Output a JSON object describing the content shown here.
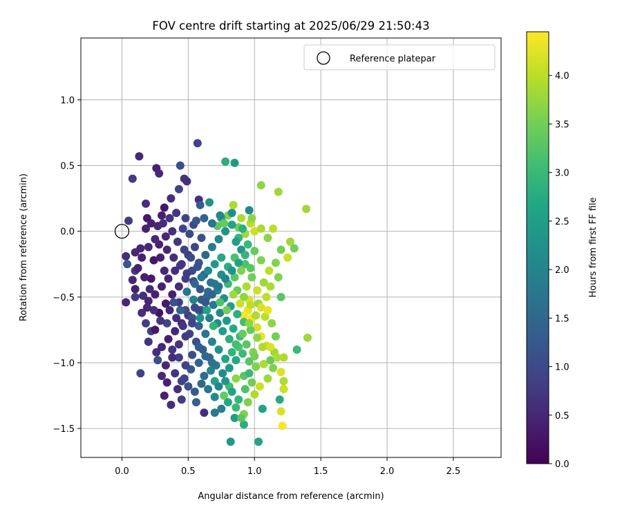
{
  "chart_data": {
    "type": "scatter",
    "title": "FOV centre drift starting at 2025/06/29 21:50:43",
    "xlabel": "Angular distance from reference (arcmin)",
    "ylabel": "Rotation from reference (arcmin)",
    "xlim": [
      -0.31,
      2.86
    ],
    "ylim": [
      -1.72,
      1.47
    ],
    "x_ticks": [
      0.0,
      0.5,
      1.0,
      1.5,
      2.0,
      2.5
    ],
    "x_tick_labels": [
      "0.0",
      "0.5",
      "1.0",
      "1.5",
      "2.0",
      "2.5"
    ],
    "y_ticks": [
      1.0,
      0.5,
      0.0,
      -0.5,
      -1.0,
      -1.5
    ],
    "y_tick_labels": [
      "1.0",
      "0.5",
      "0.0",
      "−0.5",
      "−1.0",
      "−1.5"
    ],
    "grid": true,
    "legend": {
      "placement": "top-right",
      "entries": [
        {
          "label": "Reference platepar",
          "marker": "open-circle"
        }
      ]
    },
    "reference_point": {
      "x": 0.0,
      "y": 0.0
    },
    "colorbar": {
      "label": "Hours from first FF file",
      "colormap": "viridis",
      "range": [
        0.0,
        4.45
      ],
      "ticks": [
        0.0,
        0.5,
        1.0,
        1.5,
        2.0,
        2.5,
        3.0,
        3.5,
        4.0
      ],
      "tick_labels": [
        "0.0",
        "0.5",
        "1.0",
        "1.5",
        "2.0",
        "2.5",
        "3.0",
        "3.5",
        "4.0"
      ]
    },
    "points": [
      [
        0.57,
        0.67,
        0.9
      ],
      [
        0.13,
        0.57,
        0.5
      ],
      [
        0.44,
        0.5,
        1.1
      ],
      [
        0.26,
        0.48,
        0.4
      ],
      [
        0.28,
        0.44,
        0.5
      ],
      [
        0.08,
        0.4,
        0.8
      ],
      [
        0.47,
        0.4,
        0.7
      ],
      [
        0.49,
        0.38,
        0.6
      ],
      [
        0.43,
        0.32,
        0.9
      ],
      [
        0.37,
        0.25,
        0.6
      ],
      [
        0.18,
        0.21,
        0.6
      ],
      [
        0.58,
        0.24,
        0.6
      ],
      [
        0.66,
        0.22,
        2.3
      ],
      [
        0.32,
        0.18,
        0.3
      ],
      [
        0.3,
        0.12,
        0.4
      ],
      [
        0.05,
        0.08,
        0.8
      ],
      [
        0.19,
        0.1,
        0.3
      ],
      [
        0.22,
        0.06,
        0.4
      ],
      [
        0.18,
        0.02,
        0.4
      ],
      [
        0.27,
        0.04,
        0.5
      ],
      [
        0.41,
        0.14,
        0.7
      ],
      [
        0.48,
        0.1,
        0.9
      ],
      [
        0.54,
        0.05,
        1.0
      ],
      [
        0.59,
        0.2,
        1.3
      ],
      [
        0.78,
        0.53,
        2.8
      ],
      [
        0.85,
        0.52,
        2.4
      ],
      [
        1.05,
        0.35,
        3.7
      ],
      [
        1.18,
        0.3,
        3.8
      ],
      [
        1.39,
        0.17,
        3.8
      ],
      [
        0.96,
        0.16,
        2.1
      ],
      [
        0.8,
        0.12,
        3.6
      ],
      [
        0.9,
        0.1,
        3.9
      ],
      [
        0.97,
        0.06,
        4.0
      ],
      [
        0.75,
        0.1,
        2.6
      ],
      [
        0.72,
        0.04,
        3.3
      ],
      [
        0.88,
        0.03,
        3.5
      ],
      [
        0.93,
        -0.02,
        3.8
      ],
      [
        1.0,
        0.0,
        4.1
      ],
      [
        1.05,
        0.02,
        3.9
      ],
      [
        1.1,
        -0.05,
        3.7
      ],
      [
        1.14,
        0.02,
        4.0
      ],
      [
        1.27,
        -0.08,
        3.8
      ],
      [
        1.3,
        -0.13,
        3.5
      ],
      [
        1.25,
        -0.2,
        4.1
      ],
      [
        1.18,
        -0.35,
        3.6
      ],
      [
        1.2,
        -0.5,
        3.3
      ],
      [
        1.4,
        -0.81,
        3.8
      ],
      [
        1.32,
        -0.9,
        3.0
      ],
      [
        1.22,
        -0.96,
        3.9
      ],
      [
        1.2,
        -1.07,
        4.2
      ],
      [
        1.22,
        -1.14,
        3.9
      ],
      [
        1.22,
        -1.2,
        4.1
      ],
      [
        1.19,
        -1.28,
        2.7
      ],
      [
        1.2,
        -1.37,
        4.2
      ],
      [
        1.21,
        -1.48,
        4.4
      ],
      [
        1.06,
        -1.35,
        2.6
      ],
      [
        1.03,
        -1.6,
        2.6
      ],
      [
        0.92,
        -1.47,
        2.8
      ],
      [
        0.85,
        -1.42,
        2.5
      ],
      [
        0.82,
        -1.6,
        2.4
      ],
      [
        0.92,
        -1.39,
        3.6
      ],
      [
        0.75,
        -1.35,
        1.9
      ],
      [
        0.7,
        -1.38,
        1.8
      ],
      [
        0.62,
        -1.38,
        0.6
      ],
      [
        0.56,
        -1.3,
        1.4
      ],
      [
        0.45,
        -1.28,
        0.8
      ],
      [
        0.37,
        -1.32,
        0.6
      ],
      [
        0.32,
        -1.25,
        0.4
      ],
      [
        0.14,
        -1.08,
        0.9
      ],
      [
        0.03,
        -0.54,
        0.5
      ],
      [
        0.03,
        -0.19,
        0.6
      ],
      [
        0.04,
        -0.25,
        1.2
      ],
      [
        0.1,
        -0.16,
        0.5
      ],
      [
        0.14,
        -0.13,
        0.5
      ],
      [
        0.1,
        -0.3,
        0.7
      ],
      [
        0.08,
        -0.37,
        0.5
      ],
      [
        0.12,
        -0.28,
        0.4
      ],
      [
        0.1,
        -0.44,
        0.4
      ],
      [
        0.16,
        -0.49,
        0.6
      ],
      [
        0.1,
        -0.5,
        0.8
      ],
      [
        0.2,
        -0.53,
        0.5
      ],
      [
        0.15,
        -0.62,
        0.6
      ],
      [
        0.18,
        -0.7,
        0.8
      ],
      [
        0.22,
        -0.76,
        0.9
      ],
      [
        0.2,
        -0.84,
        0.7
      ],
      [
        0.26,
        -0.92,
        0.6
      ],
      [
        0.27,
        -0.98,
        1.1
      ],
      [
        0.3,
        -1.1,
        0.5
      ],
      [
        0.34,
        -1.15,
        0.4
      ],
      [
        0.42,
        -1.2,
        0.6
      ],
      [
        0.47,
        -1.12,
        0.9
      ],
      [
        0.52,
        -1.05,
        1.2
      ],
      [
        0.58,
        -1.0,
        1.4
      ],
      [
        0.62,
        -1.1,
        1.6
      ],
      [
        0.67,
        -1.06,
        2.0
      ],
      [
        0.7,
        -1.14,
        2.6
      ],
      [
        0.77,
        -1.25,
        3.4
      ],
      [
        0.81,
        -1.18,
        3.1
      ],
      [
        0.86,
        -1.12,
        3.7
      ],
      [
        0.92,
        -1.1,
        3.3
      ],
      [
        0.96,
        -1.08,
        3.0
      ],
      [
        1.01,
        -1.03,
        3.6
      ],
      [
        1.07,
        -1.01,
        3.9
      ],
      [
        1.12,
        -0.98,
        3.4
      ],
      [
        1.15,
        -0.92,
        3.8
      ],
      [
        1.09,
        -0.87,
        4.1
      ],
      [
        1.05,
        -0.8,
        4.3
      ],
      [
        1.02,
        -0.73,
        4.2
      ],
      [
        0.98,
        -0.66,
        4.4
      ],
      [
        0.95,
        -0.6,
        4.3
      ],
      [
        0.92,
        -0.64,
        4.4
      ],
      [
        0.96,
        -0.52,
        4.2
      ],
      [
        1.02,
        -0.45,
        4.1
      ],
      [
        1.07,
        -0.39,
        3.8
      ],
      [
        1.11,
        -0.3,
        4.0
      ],
      [
        1.05,
        -0.22,
        3.6
      ],
      [
        1.0,
        -0.15,
        3.4
      ],
      [
        0.95,
        -0.1,
        3.0
      ],
      [
        0.9,
        -0.14,
        2.4
      ],
      [
        0.85,
        -0.2,
        3.2
      ],
      [
        0.8,
        -0.27,
        2.8
      ],
      [
        0.75,
        -0.33,
        2.2
      ],
      [
        0.7,
        -0.4,
        1.9
      ],
      [
        0.65,
        -0.46,
        1.6
      ],
      [
        0.6,
        -0.52,
        1.3
      ],
      [
        0.55,
        -0.58,
        1.0
      ],
      [
        0.5,
        -0.64,
        0.8
      ],
      [
        0.45,
        -0.7,
        0.6
      ],
      [
        0.4,
        -0.76,
        0.5
      ],
      [
        0.35,
        -0.82,
        0.4
      ],
      [
        0.3,
        -0.88,
        0.5
      ],
      [
        0.25,
        -0.75,
        0.3
      ],
      [
        0.28,
        -0.62,
        0.2
      ],
      [
        0.33,
        -0.55,
        0.3
      ],
      [
        0.38,
        -0.48,
        0.4
      ],
      [
        0.43,
        -0.42,
        0.6
      ],
      [
        0.48,
        -0.36,
        0.8
      ],
      [
        0.53,
        -0.3,
        1.0
      ],
      [
        0.58,
        -0.24,
        1.2
      ],
      [
        0.63,
        -0.18,
        1.5
      ],
      [
        0.68,
        -0.12,
        1.8
      ],
      [
        0.73,
        -0.06,
        2.0
      ],
      [
        0.78,
        0.0,
        2.3
      ],
      [
        0.83,
        0.05,
        2.6
      ],
      [
        0.88,
        -0.05,
        2.9
      ],
      [
        0.93,
        -0.25,
        3.2
      ],
      [
        0.98,
        -0.35,
        3.5
      ],
      [
        1.03,
        -0.55,
        3.8
      ],
      [
        1.08,
        -0.65,
        4.0
      ],
      [
        0.6,
        -0.05,
        1.1
      ],
      [
        0.55,
        -0.12,
        0.9
      ],
      [
        0.5,
        -0.18,
        0.8
      ],
      [
        0.45,
        -0.25,
        0.7
      ],
      [
        0.4,
        -0.3,
        0.6
      ],
      [
        0.35,
        -0.36,
        0.5
      ],
      [
        0.3,
        -0.42,
        0.4
      ],
      [
        0.25,
        -0.48,
        0.4
      ],
      [
        0.22,
        -0.36,
        0.3
      ],
      [
        0.24,
        -0.22,
        0.3
      ],
      [
        0.28,
        -0.1,
        0.4
      ],
      [
        0.33,
        -0.04,
        0.5
      ],
      [
        0.38,
        0.0,
        0.6
      ],
      [
        0.42,
        -0.08,
        0.7
      ],
      [
        0.47,
        -0.14,
        0.9
      ],
      [
        0.52,
        -0.2,
        1.0
      ],
      [
        0.57,
        -0.27,
        1.1
      ],
      [
        0.62,
        -0.33,
        1.4
      ],
      [
        0.67,
        -0.39,
        1.7
      ],
      [
        0.72,
        -0.45,
        2.0
      ],
      [
        0.77,
        -0.51,
        2.2
      ],
      [
        0.82,
        -0.57,
        2.5
      ],
      [
        0.87,
        -0.63,
        2.8
      ],
      [
        0.92,
        -0.69,
        3.1
      ],
      [
        0.97,
        -0.75,
        3.4
      ],
      [
        1.02,
        -0.81,
        3.7
      ],
      [
        1.06,
        -0.88,
        3.9
      ],
      [
        0.99,
        -0.92,
        3.6
      ],
      [
        0.94,
        -0.86,
        3.3
      ],
      [
        0.89,
        -0.8,
        3.0
      ],
      [
        0.84,
        -0.74,
        2.7
      ],
      [
        0.79,
        -0.68,
        2.4
      ],
      [
        0.74,
        -0.62,
        2.1
      ],
      [
        0.69,
        -0.56,
        1.8
      ],
      [
        0.64,
        -0.5,
        1.5
      ],
      [
        0.59,
        -0.44,
        1.2
      ],
      [
        0.54,
        -0.38,
        1.0
      ],
      [
        0.49,
        -0.32,
        0.8
      ],
      [
        0.44,
        -0.26,
        0.7
      ],
      [
        0.39,
        -0.2,
        0.6
      ],
      [
        0.34,
        -0.14,
        0.5
      ],
      [
        0.29,
        -0.2,
        0.4
      ],
      [
        0.32,
        -0.3,
        0.5
      ],
      [
        0.36,
        -0.6,
        0.5
      ],
      [
        0.41,
        -0.66,
        0.6
      ],
      [
        0.46,
        -0.72,
        0.7
      ],
      [
        0.51,
        -0.78,
        0.9
      ],
      [
        0.56,
        -0.84,
        1.1
      ],
      [
        0.61,
        -0.9,
        1.3
      ],
      [
        0.66,
        -0.96,
        1.5
      ],
      [
        0.71,
        -1.02,
        1.8
      ],
      [
        0.76,
        -1.08,
        2.1
      ],
      [
        0.81,
        -1.04,
        2.4
      ],
      [
        0.86,
        -0.98,
        2.7
      ],
      [
        0.91,
        -0.93,
        3.0
      ],
      [
        0.96,
        -0.99,
        3.3
      ],
      [
        1.0,
        -0.95,
        3.5
      ],
      [
        0.88,
        -0.88,
        3.2
      ],
      [
        0.83,
        -0.92,
        2.9
      ],
      [
        0.78,
        -0.97,
        2.6
      ],
      [
        0.73,
        -0.9,
        2.3
      ],
      [
        0.68,
        -0.84,
        2.0
      ],
      [
        0.63,
        -0.78,
        1.7
      ],
      [
        0.58,
        -0.72,
        1.4
      ],
      [
        0.53,
        -0.66,
        1.2
      ],
      [
        0.48,
        -0.6,
        1.0
      ],
      [
        0.43,
        -0.54,
        0.8
      ],
      [
        0.38,
        -0.9,
        0.7
      ],
      [
        0.43,
        -0.96,
        0.8
      ],
      [
        0.48,
        -1.02,
        0.9
      ],
      [
        0.53,
        -0.94,
        1.1
      ],
      [
        0.58,
        -0.88,
        1.3
      ],
      [
        0.63,
        -0.95,
        1.5
      ],
      [
        0.68,
        -1.0,
        1.7
      ],
      [
        0.73,
        -1.18,
        2.0
      ],
      [
        0.78,
        -1.14,
        2.3
      ],
      [
        0.83,
        -1.22,
        2.6
      ],
      [
        0.88,
        -1.28,
        2.9
      ],
      [
        0.93,
        -1.2,
        3.2
      ],
      [
        0.98,
        -1.15,
        3.5
      ],
      [
        0.9,
        -0.3,
        3.6
      ],
      [
        0.85,
        -0.35,
        3.3
      ],
      [
        0.8,
        -0.4,
        3.0
      ],
      [
        0.75,
        -0.2,
        2.7
      ],
      [
        0.7,
        -0.25,
        2.4
      ],
      [
        0.65,
        -0.3,
        2.1
      ],
      [
        0.6,
        -0.35,
        1.8
      ],
      [
        0.55,
        -0.4,
        1.5
      ],
      [
        0.72,
        -0.7,
        2.2
      ],
      [
        0.66,
        -0.66,
        1.9
      ],
      [
        0.6,
        -0.6,
        1.6
      ],
      [
        0.87,
        -0.45,
        3.4
      ],
      [
        0.92,
        -0.5,
        3.7
      ],
      [
        0.97,
        -0.56,
        4.0
      ],
      [
        0.94,
        -0.42,
        3.9
      ],
      [
        0.89,
        -0.55,
        4.1
      ],
      [
        0.84,
        -0.48,
        3.8
      ],
      [
        0.79,
        -0.6,
        3.5
      ],
      [
        0.74,
        -0.54,
        3.2
      ],
      [
        0.69,
        -0.72,
        2.9
      ],
      [
        0.64,
        -0.6,
        2.6
      ],
      [
        0.59,
        -0.66,
        2.3
      ],
      [
        0.54,
        -0.52,
        2.0
      ],
      [
        0.49,
        -0.46,
        1.7
      ],
      [
        0.44,
        -0.6,
        1.4
      ],
      [
        0.39,
        -0.54,
        1.1
      ],
      [
        0.34,
        -0.7,
        0.9
      ],
      [
        0.29,
        -0.68,
        0.7
      ],
      [
        0.24,
        -0.6,
        0.6
      ],
      [
        0.19,
        -0.58,
        0.5
      ],
      [
        0.21,
        -0.44,
        0.5
      ],
      [
        0.17,
        -0.35,
        0.4
      ],
      [
        0.15,
        -0.2,
        0.4
      ],
      [
        0.2,
        -0.12,
        0.5
      ],
      [
        0.25,
        -0.06,
        0.5
      ],
      [
        0.31,
        0.06,
        0.6
      ],
      [
        0.36,
        0.1,
        0.7
      ],
      [
        0.46,
        0.02,
        0.9
      ],
      [
        0.51,
        -0.02,
        1.0
      ],
      [
        0.56,
        0.08,
        1.2
      ],
      [
        0.62,
        0.1,
        1.4
      ],
      [
        0.68,
        0.06,
        1.7
      ],
      [
        0.74,
        0.12,
        2.0
      ],
      [
        0.83,
        0.14,
        2.2
      ],
      [
        0.86,
        -0.08,
        2.5
      ],
      [
        0.91,
        0.02,
        2.8
      ],
      [
        0.76,
        -0.76,
        2.5
      ],
      [
        0.81,
        -0.82,
        2.8
      ],
      [
        0.86,
        -0.86,
        3.1
      ],
      [
        0.91,
        -0.78,
        3.4
      ],
      [
        0.96,
        -0.7,
        3.7
      ],
      [
        1.01,
        -0.64,
        3.9
      ],
      [
        1.05,
        -0.58,
        4.2
      ],
      [
        1.09,
        -0.5,
        4.0
      ],
      [
        0.97,
        -0.28,
        3.3
      ],
      [
        0.93,
        -0.18,
        2.9
      ],
      [
        0.88,
        -0.24,
        2.6
      ],
      [
        0.83,
        -0.3,
        2.3
      ],
      [
        0.78,
        -0.36,
        2.0
      ],
      [
        0.73,
        -0.42,
        1.7
      ],
      [
        0.68,
        -0.48,
        1.4
      ],
      [
        0.63,
        -0.54,
        1.2
      ],
      [
        0.58,
        -0.6,
        1.0
      ],
      [
        0.53,
        -0.7,
        0.9
      ],
      [
        0.48,
        -0.8,
        0.8
      ],
      [
        0.43,
        -0.86,
        0.7
      ],
      [
        0.38,
        -0.96,
        0.6
      ],
      [
        0.33,
        -1.02,
        0.5
      ],
      [
        0.4,
        -1.08,
        0.7
      ],
      [
        0.45,
        -1.14,
        0.9
      ],
      [
        0.5,
        -1.18,
        1.1
      ],
      [
        0.55,
        -1.22,
        1.3
      ],
      [
        0.6,
        -1.16,
        1.5
      ],
      [
        0.65,
        -1.2,
        1.8
      ],
      [
        0.7,
        -1.26,
        2.1
      ],
      [
        0.8,
        -1.3,
        2.7
      ],
      [
        0.86,
        -1.34,
        3.0
      ],
      [
        0.9,
        -1.42,
        3.3
      ],
      [
        0.95,
        -1.3,
        3.6
      ],
      [
        1.0,
        -1.24,
        3.9
      ],
      [
        1.04,
        -1.18,
        4.1
      ],
      [
        1.1,
        -1.12,
        3.8
      ],
      [
        1.14,
        -1.04,
        3.6
      ],
      [
        1.17,
        -0.96,
        3.9
      ],
      [
        1.12,
        -0.88,
        4.2
      ],
      [
        1.16,
        -0.8,
        3.5
      ],
      [
        1.13,
        -0.7,
        3.7
      ],
      [
        1.1,
        -0.6,
        4.3
      ],
      [
        1.12,
        -0.42,
        3.9
      ],
      [
        1.16,
        -0.24,
        3.6
      ],
      [
        1.2,
        -0.14,
        3.5
      ],
      [
        0.98,
        0.1,
        3.7
      ],
      [
        0.84,
        0.2,
        3.9
      ],
      [
        0.77,
        0.06,
        3.4
      ]
    ]
  }
}
